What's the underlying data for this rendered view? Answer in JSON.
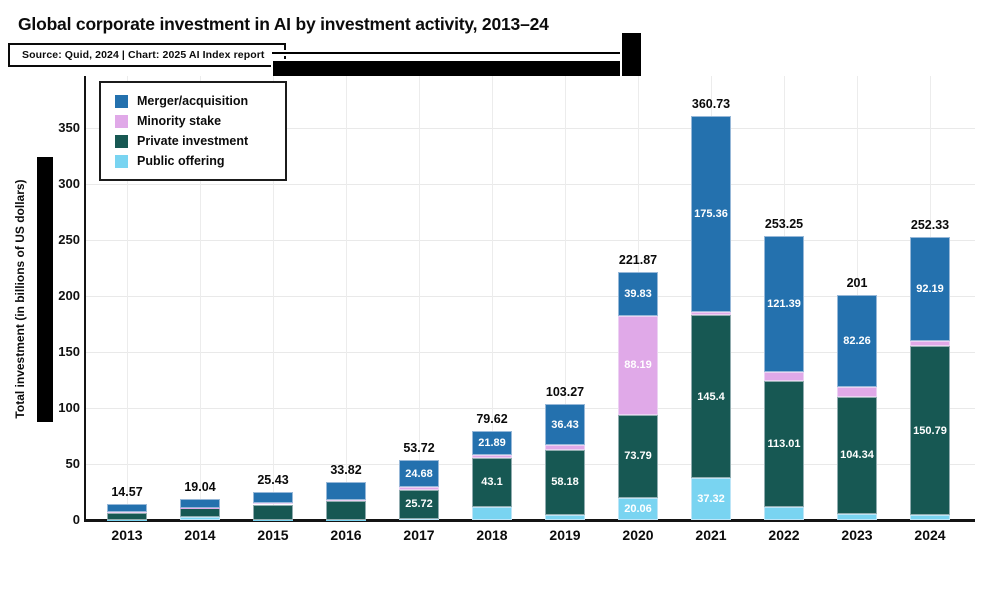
{
  "header": {
    "title": "Global corporate investment in AI by investment activity, 2013–24",
    "source": "Source: Quid, 2024 | Chart: 2025 AI Index report"
  },
  "chart_data": {
    "type": "bar",
    "stacked": true,
    "title": "Global corporate investment in AI by investment activity, 2013–24",
    "xlabel": "",
    "ylabel": "Total investment (in billions of US dollars)",
    "ylim": [
      0,
      375
    ],
    "yticks": [
      0,
      50,
      100,
      150,
      200,
      250,
      300,
      350
    ],
    "grid": "horizontal and vertical light gray",
    "legend_position": "top-left inside plot, black-bordered box",
    "categories": [
      "2013",
      "2014",
      "2015",
      "2016",
      "2017",
      "2018",
      "2019",
      "2020",
      "2021",
      "2022",
      "2023",
      "2024"
    ],
    "totals": [
      "14.57",
      "19.04",
      "25.43",
      "33.82",
      "53.72",
      "79.62",
      "103.27",
      "221.87",
      "360.73",
      "253.25",
      "201",
      "252.33"
    ],
    "series": [
      {
        "name": "Public offering",
        "color": "#79d4f1",
        "values": [
          0.3,
          2.44,
          0.43,
          0.32,
          1.32,
          12.0,
          4.66,
          20.06,
          37.32,
          11.35,
          5.5,
          4.35
        ],
        "labels": [
          null,
          null,
          null,
          null,
          null,
          null,
          null,
          "20.06",
          "37.32",
          null,
          null,
          null
        ]
      },
      {
        "name": "Private investment",
        "color": "#175853",
        "values": [
          5.7,
          7.9,
          13.4,
          16.3,
          25.72,
          43.1,
          58.18,
          73.79,
          145.4,
          113.01,
          104.34,
          150.79
        ],
        "labels": [
          null,
          null,
          null,
          null,
          "25.72",
          "43.1",
          "58.18",
          "73.79",
          "145.4",
          "113.01",
          "104.34",
          "150.79"
        ]
      },
      {
        "name": "Minority stake",
        "color": "#e0a9e8",
        "values": [
          0.87,
          0.5,
          1.1,
          1.5,
          2.0,
          2.63,
          4.0,
          88.19,
          2.65,
          7.5,
          8.9,
          5.0
        ],
        "labels": [
          null,
          null,
          null,
          null,
          null,
          null,
          null,
          "88.19",
          null,
          null,
          null,
          null
        ]
      },
      {
        "name": "Merger/acquisition",
        "color": "#2471ae",
        "values": [
          7.7,
          8.2,
          10.5,
          15.7,
          24.68,
          21.89,
          36.43,
          39.83,
          175.36,
          121.39,
          82.26,
          92.19
        ],
        "labels": [
          null,
          null,
          null,
          null,
          "24.68",
          "21.89",
          "36.43",
          "39.83",
          "175.36",
          "121.39",
          "82.26",
          "92.19"
        ]
      }
    ],
    "legend": [
      {
        "label": "Merger/acquisition",
        "color": "#2471ae"
      },
      {
        "label": "Minority stake",
        "color": "#e0a9e8"
      },
      {
        "label": "Private investment",
        "color": "#175853"
      },
      {
        "label": "Public offering",
        "color": "#79d4f1"
      }
    ]
  }
}
